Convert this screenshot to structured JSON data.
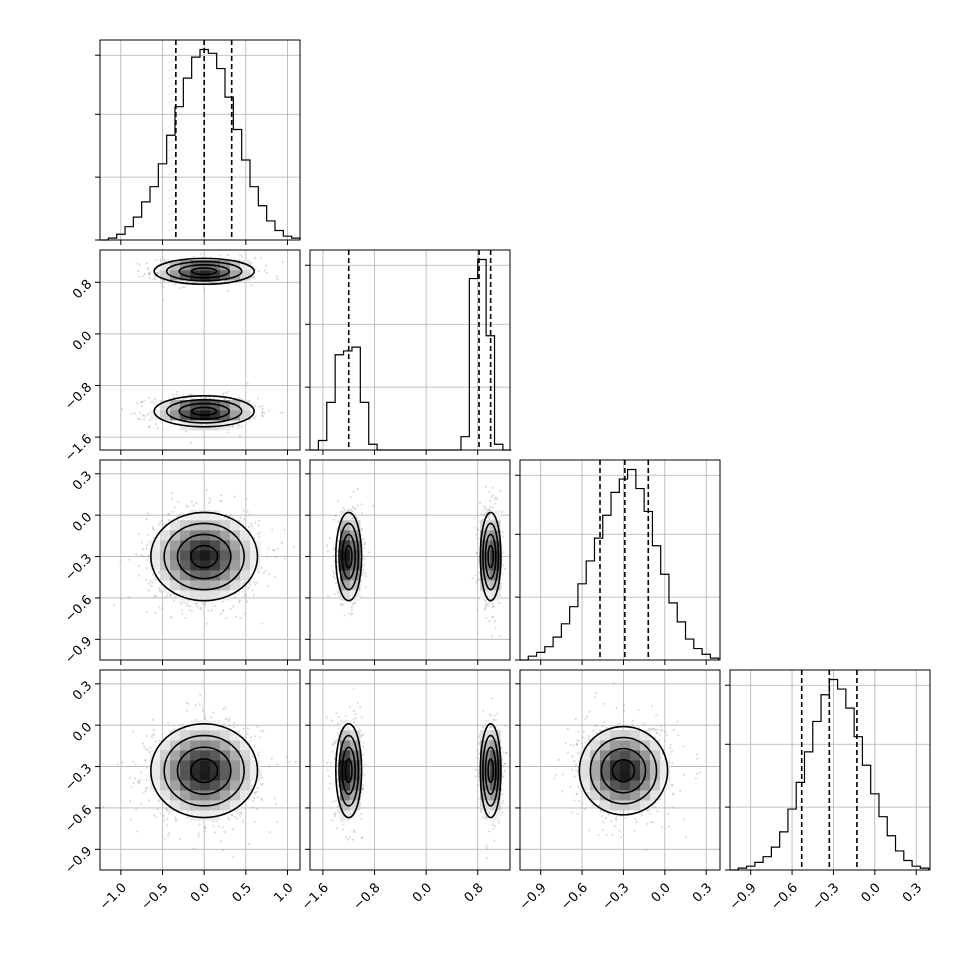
{
  "chart_data": {
    "type": "corner",
    "n_params": 4,
    "grid": true,
    "axis_ranges": [
      [
        -1.25,
        1.15
      ],
      [
        -1.8,
        1.3
      ],
      [
        -1.05,
        0.4
      ],
      [
        -1.05,
        0.4
      ]
    ],
    "ticks": [
      {
        "values": [
          -1.0,
          -0.5,
          0.0,
          0.5,
          1.0
        ],
        "labels": [
          "−1.0",
          "−0.5",
          "0.0",
          "0.5",
          "1.0"
        ]
      },
      {
        "values": [
          -1.6,
          -0.8,
          0.0,
          0.8
        ],
        "labels": [
          "−1.6",
          "−0.8",
          "0.0",
          "0.8"
        ]
      },
      {
        "values": [
          -0.9,
          -0.6,
          -0.3,
          0.0,
          0.3
        ],
        "labels": [
          "−0.9",
          "−0.6",
          "−0.3",
          "0.0",
          "0.3"
        ]
      },
      {
        "values": [
          -0.9,
          -0.6,
          -0.3,
          0.0,
          0.3
        ],
        "labels": [
          "−0.9",
          "−0.6",
          "−0.3",
          "0.0",
          "0.3"
        ]
      }
    ],
    "marginals": [
      {
        "param": 0,
        "quantiles": [
          -0.34,
          0.0,
          0.33
        ],
        "bin_edges": [
          -1.25,
          -1.15,
          -1.05,
          -0.95,
          -0.85,
          -0.75,
          -0.65,
          -0.55,
          -0.45,
          -0.35,
          -0.25,
          -0.15,
          -0.05,
          0.05,
          0.15,
          0.25,
          0.35,
          0.45,
          0.55,
          0.65,
          0.75,
          0.85,
          0.95,
          1.05,
          1.15
        ],
        "counts": [
          0.0,
          0.01,
          0.03,
          0.07,
          0.12,
          0.2,
          0.28,
          0.4,
          0.55,
          0.7,
          0.85,
          0.96,
          1.0,
          0.98,
          0.9,
          0.75,
          0.58,
          0.42,
          0.28,
          0.18,
          0.1,
          0.05,
          0.02,
          0.01
        ]
      },
      {
        "param": 1,
        "quantiles": [
          -1.2,
          0.82,
          1.0
        ],
        "bin_edges": [
          -1.8,
          -1.67,
          -1.54,
          -1.41,
          -1.28,
          -1.15,
          -1.02,
          -0.89,
          -0.76,
          -0.63,
          -0.5,
          -0.37,
          -0.24,
          -0.11,
          0.02,
          0.15,
          0.28,
          0.41,
          0.54,
          0.67,
          0.8,
          0.93,
          1.06,
          1.19,
          1.32
        ],
        "counts": [
          0.0,
          0.05,
          0.25,
          0.5,
          0.52,
          0.54,
          0.25,
          0.03,
          0.0,
          0.0,
          0.0,
          0.0,
          0.0,
          0.0,
          0.0,
          0.0,
          0.0,
          0.0,
          0.07,
          0.9,
          1.0,
          0.6,
          0.03,
          0.0
        ]
      },
      {
        "param": 2,
        "quantiles": [
          -0.47,
          -0.29,
          -0.12
        ],
        "bin_edges": [
          -1.05,
          -0.99,
          -0.93,
          -0.87,
          -0.81,
          -0.75,
          -0.69,
          -0.63,
          -0.57,
          -0.51,
          -0.45,
          -0.39,
          -0.33,
          -0.27,
          -0.21,
          -0.15,
          -0.09,
          -0.03,
          0.03,
          0.09,
          0.15,
          0.21,
          0.27,
          0.33,
          0.39
        ],
        "counts": [
          0.0,
          0.02,
          0.04,
          0.07,
          0.12,
          0.19,
          0.28,
          0.4,
          0.52,
          0.64,
          0.76,
          0.88,
          0.95,
          1.0,
          0.9,
          0.78,
          0.6,
          0.45,
          0.3,
          0.2,
          0.11,
          0.06,
          0.03,
          0.01
        ]
      },
      {
        "param": 3,
        "quantiles": [
          -0.53,
          -0.33,
          -0.13
        ],
        "bin_edges": [
          -1.05,
          -0.99,
          -0.93,
          -0.87,
          -0.81,
          -0.75,
          -0.69,
          -0.63,
          -0.57,
          -0.51,
          -0.45,
          -0.39,
          -0.33,
          -0.27,
          -0.21,
          -0.15,
          -0.09,
          -0.03,
          0.03,
          0.09,
          0.15,
          0.21,
          0.27,
          0.33,
          0.39
        ],
        "counts": [
          0.0,
          0.01,
          0.02,
          0.04,
          0.07,
          0.12,
          0.2,
          0.32,
          0.46,
          0.62,
          0.78,
          0.92,
          1.0,
          0.95,
          0.85,
          0.7,
          0.55,
          0.4,
          0.28,
          0.18,
          0.1,
          0.05,
          0.02,
          0.01
        ]
      }
    ],
    "joints": [
      {
        "x_param": 0,
        "y_param": 1,
        "modes": [
          {
            "center": [
              0.0,
              0.97
            ],
            "sigma": [
              0.3,
              0.1
            ],
            "weight": 0.5
          },
          {
            "center": [
              0.0,
              -1.2
            ],
            "sigma": [
              0.3,
              0.12
            ],
            "weight": 0.5
          }
        ]
      },
      {
        "x_param": 0,
        "y_param": 2,
        "modes": [
          {
            "center": [
              0.0,
              -0.3
            ],
            "sigma": [
              0.32,
              0.16
            ],
            "weight": 1.0
          }
        ]
      },
      {
        "x_param": 1,
        "y_param": 2,
        "modes": [
          {
            "center": [
              -1.2,
              -0.3
            ],
            "sigma": [
              0.1,
              0.16
            ],
            "weight": 0.5
          },
          {
            "center": [
              1.0,
              -0.3
            ],
            "sigma": [
              0.08,
              0.16
            ],
            "weight": 0.5
          }
        ]
      },
      {
        "x_param": 0,
        "y_param": 3,
        "modes": [
          {
            "center": [
              0.0,
              -0.33
            ],
            "sigma": [
              0.32,
              0.17
            ],
            "weight": 1.0
          }
        ]
      },
      {
        "x_param": 1,
        "y_param": 3,
        "modes": [
          {
            "center": [
              -1.2,
              -0.33
            ],
            "sigma": [
              0.1,
              0.17
            ],
            "weight": 0.5
          },
          {
            "center": [
              1.0,
              -0.33
            ],
            "sigma": [
              0.08,
              0.17
            ],
            "weight": 0.5
          }
        ]
      },
      {
        "x_param": 2,
        "y_param": 3,
        "modes": [
          {
            "center": [
              -0.3,
              -0.33
            ],
            "sigma": [
              0.16,
              0.16
            ],
            "weight": 1.0
          }
        ]
      }
    ]
  },
  "colors": {
    "line": "#000000",
    "grid": "#b0b0b0",
    "sample_point": "#9a9a9a",
    "density_dark": "#1a1a1a",
    "density_light": "#f2f2f2"
  }
}
